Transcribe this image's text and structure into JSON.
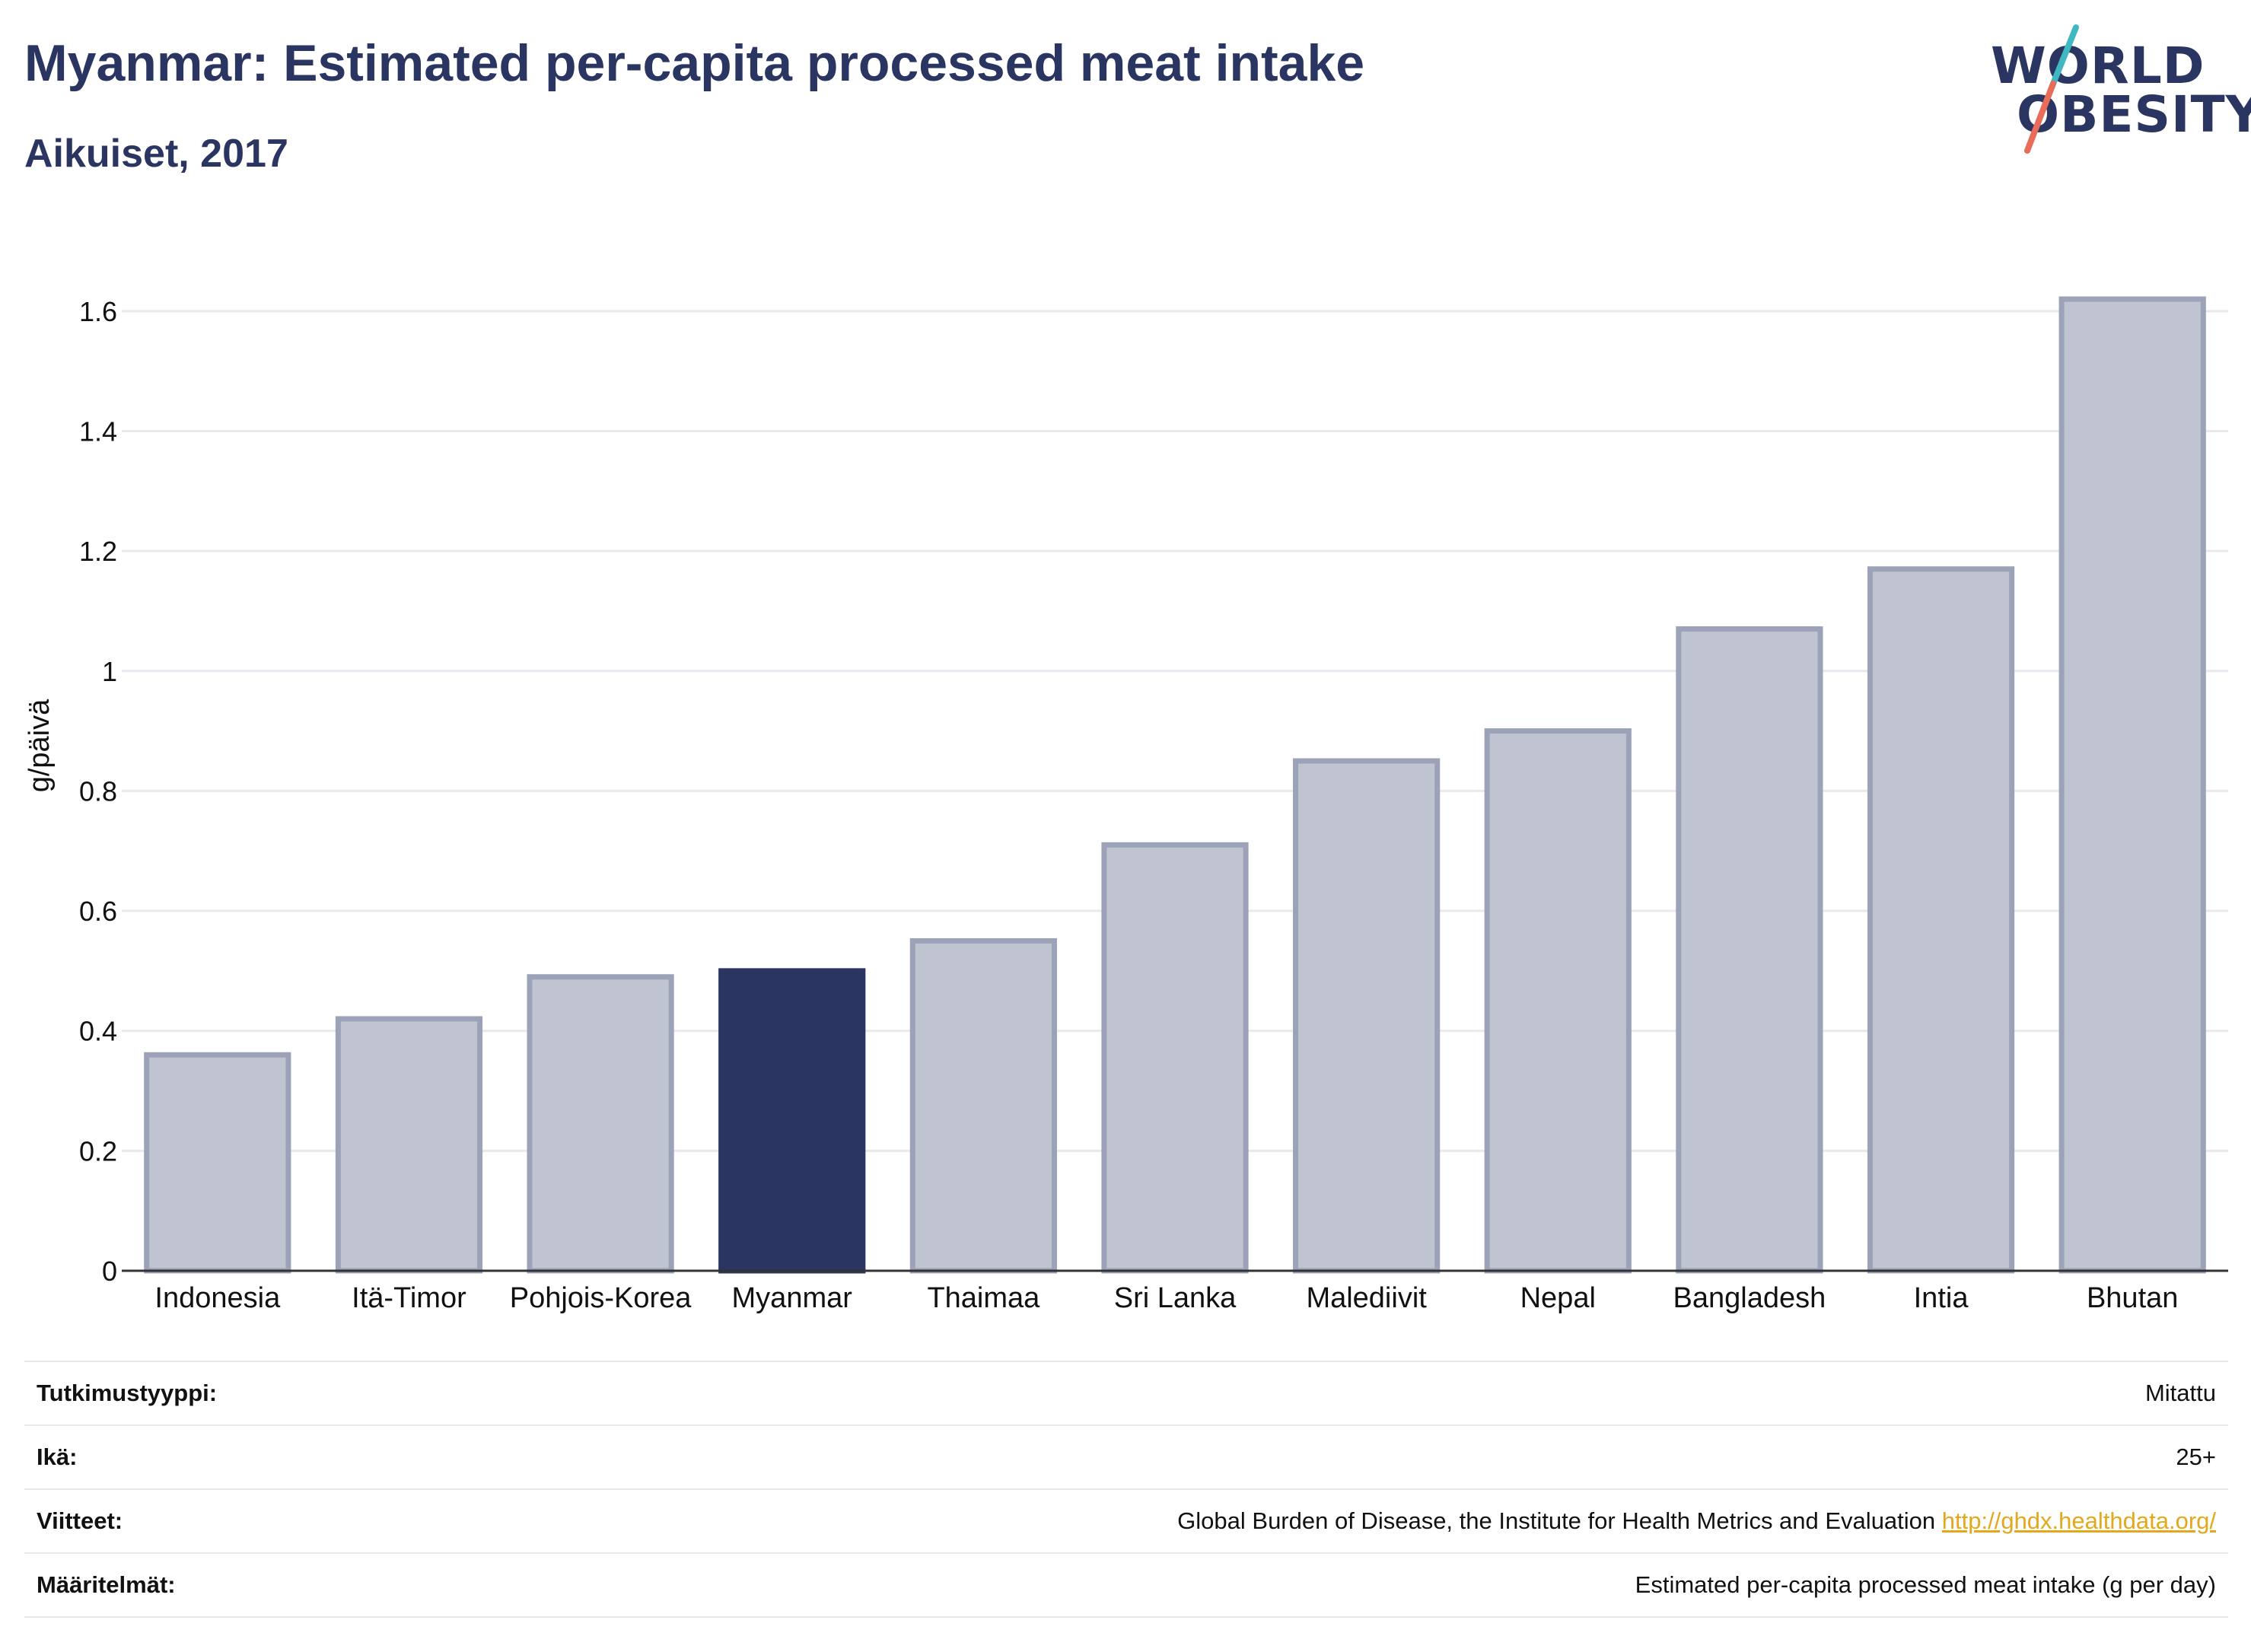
{
  "title": "Myanmar: Estimated per-capita processed meat intake",
  "subtitle": "Aikuiset, 2017",
  "logo": {
    "line1": "WORLD",
    "line2": "OBESITY",
    "accent_colors": [
      "#3fb8c1",
      "#e96c5b"
    ]
  },
  "colors": {
    "highlight": "#2a3561",
    "bar": "#c0c4d1",
    "bar_border": "#9ca2b7",
    "link": "#e3a81b"
  },
  "chart_data": {
    "type": "bar",
    "categories": [
      "Indonesia",
      "Itä-Timor",
      "Pohjois-Korea",
      "Myanmar",
      "Thaimaa",
      "Sri Lanka",
      "Malediivit",
      "Nepal",
      "Bangladesh",
      "Intia",
      "Bhutan"
    ],
    "values": [
      0.36,
      0.42,
      0.49,
      0.5,
      0.55,
      0.71,
      0.85,
      0.9,
      1.07,
      1.17,
      1.62
    ],
    "highlight": "Myanmar",
    "ylabel": "g/päivä",
    "xlabel": "",
    "ylim": [
      0,
      1.7
    ],
    "yticks": [
      0,
      0.2,
      0.4,
      0.6,
      0.8,
      1,
      1.2,
      1.4,
      1.6
    ],
    "ytick_labels": [
      "0",
      "0.2",
      "0.4",
      "0.6",
      "0.8",
      "1",
      "1.2",
      "1.4",
      "1.6"
    ],
    "grid": true
  },
  "info": [
    {
      "key": "Tutkimustyyppi:",
      "value": "Mitattu"
    },
    {
      "key": "Ikä:",
      "value": "25+"
    },
    {
      "key": "Viitteet:",
      "value": "Global Burden of Disease, the Institute for Health Metrics and Evaluation",
      "link": "http://ghdx.healthdata.org/"
    },
    {
      "key": "Määritelmät:",
      "value": "Estimated per-capita processed meat intake (g per day)"
    }
  ]
}
